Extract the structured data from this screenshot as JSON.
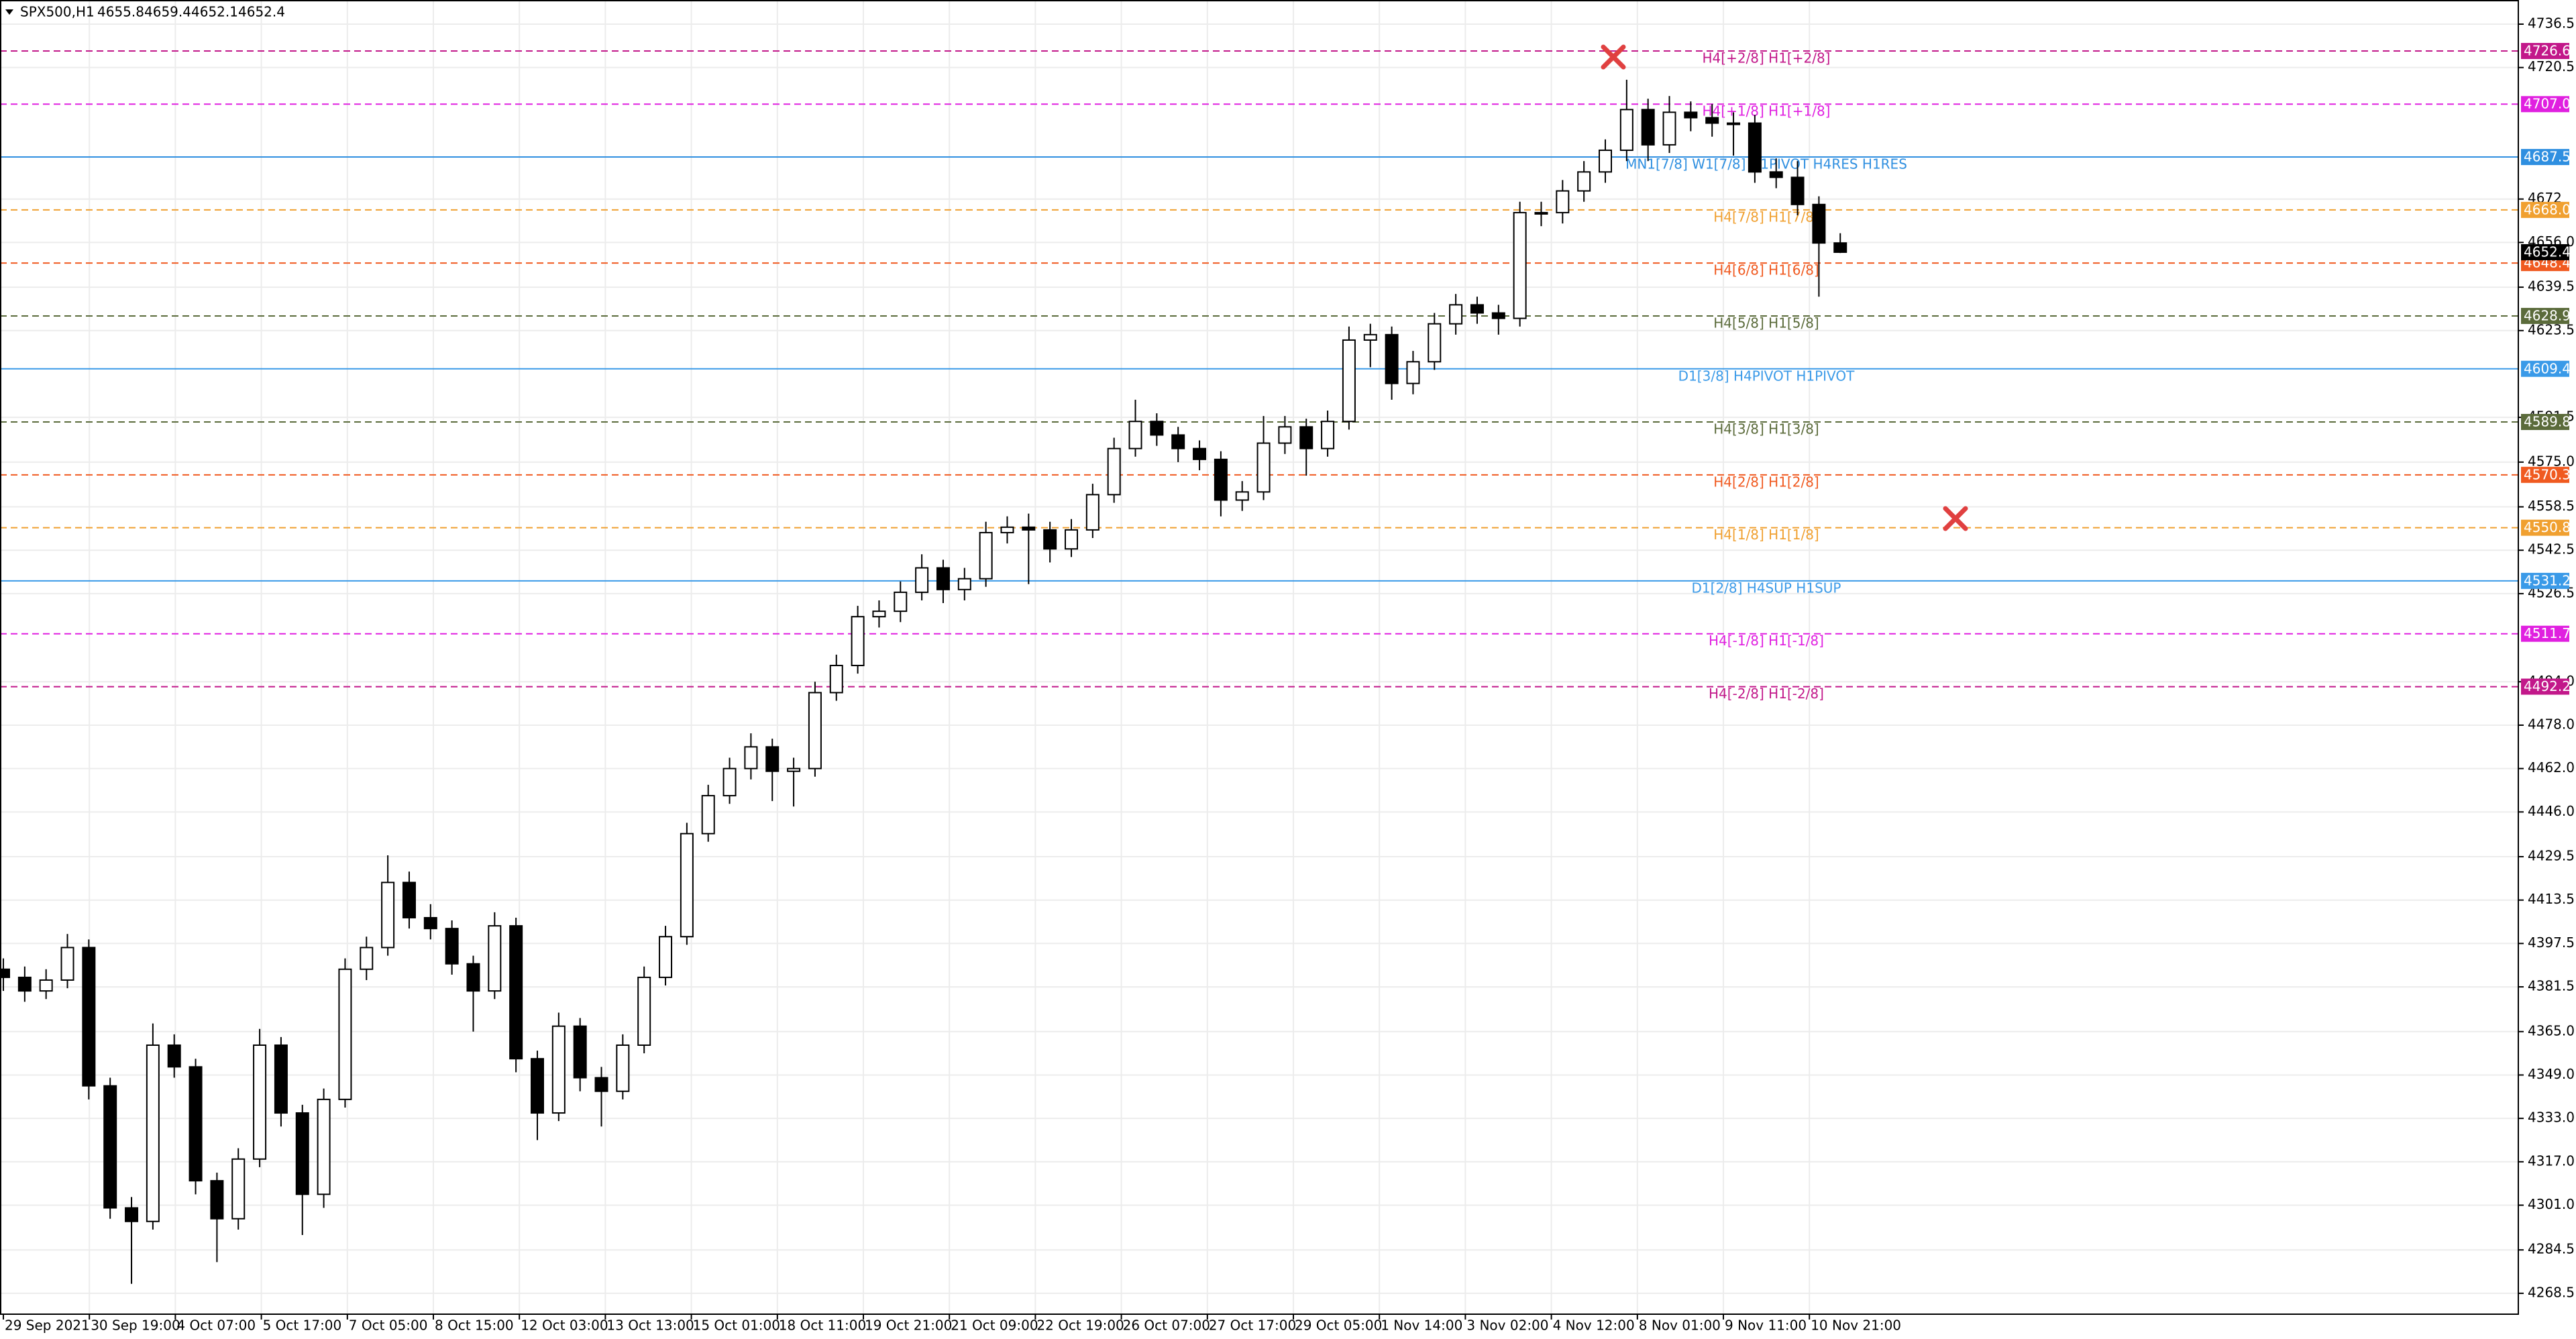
{
  "chart_data": {
    "type": "candlestick",
    "symbol": "SPX500,H1",
    "ylim": [
      4260.8,
      4745.4
    ],
    "yticks": [
      4736.5,
      4720.5,
      4672,
      {
        "value": 4656,
        "label": "4656.0"
      },
      4639.5,
      4623.5,
      4591.5,
      {
        "value": 4575,
        "label": "4575.0"
      },
      4558.5,
      4542.5,
      4526.5,
      {
        "value": 4494,
        "label": "4494.0"
      },
      {
        "value": 4478,
        "label": "4478.0"
      },
      {
        "value": 4462,
        "label": "4462.0"
      },
      {
        "value": 4446,
        "label": "4446.0"
      },
      4429.5,
      4413.5,
      4397.5,
      4381.5,
      {
        "value": 4365,
        "label": "4365.0"
      },
      {
        "value": 4349,
        "label": "4349.0"
      },
      {
        "value": 4333,
        "label": "4333.0"
      },
      {
        "value": 4317,
        "label": "4317.0"
      },
      {
        "value": 4301,
        "label": "4301.0"
      },
      4284.5,
      4268.5
    ],
    "xlabels": [
      "29 Sep 2021",
      "30 Sep 19:00",
      "4 Oct 07:00",
      "5 Oct 17:00",
      "7 Oct 05:00",
      "8 Oct 15:00",
      "12 Oct 03:00",
      "13 Oct 13:00",
      "15 Oct 01:00",
      "18 Oct 11:00",
      "19 Oct 21:00",
      "21 Oct 09:00",
      "22 Oct 19:00",
      "26 Oct 07:00",
      "27 Oct 17:00",
      "29 Oct 05:00",
      "1 Nov 14:00",
      "3 Nov 02:00",
      "4 Nov 12:00",
      "8 Nov 01:00",
      "9 Nov 11:00",
      "10 Nov 21:00"
    ],
    "grid": true,
    "up_color": "#ffffff",
    "down_color": "#000000",
    "wick_color": "#000000",
    "ohlc": [
      [
        4388,
        4392,
        4380,
        4385
      ],
      [
        4385,
        4389,
        4376,
        4380
      ],
      [
        4380,
        4388,
        4377,
        4384
      ],
      [
        4384,
        4401,
        4381,
        4396
      ],
      [
        4396,
        4399,
        4340,
        4345
      ],
      [
        4345,
        4348,
        4296,
        4300
      ],
      [
        4300,
        4304,
        4272,
        4295
      ],
      [
        4295,
        4368,
        4292,
        4360
      ],
      [
        4360,
        4364,
        4348,
        4352
      ],
      [
        4352,
        4355,
        4305,
        4310
      ],
      [
        4310,
        4313,
        4280,
        4296
      ],
      [
        4296,
        4322,
        4292,
        4318
      ],
      [
        4318,
        4366,
        4315,
        4360
      ],
      [
        4360,
        4363,
        4330,
        4335
      ],
      [
        4335,
        4338,
        4290,
        4305
      ],
      [
        4305,
        4344,
        4300,
        4340
      ],
      [
        4340,
        4392,
        4337,
        4388
      ],
      [
        4388,
        4400,
        4384,
        4396
      ],
      [
        4396,
        4430,
        4393,
        4420
      ],
      [
        4420,
        4424,
        4403,
        4407
      ],
      [
        4407,
        4412,
        4399,
        4403
      ],
      [
        4403,
        4406,
        4386,
        4390
      ],
      [
        4390,
        4393,
        4365,
        4380
      ],
      [
        4380,
        4409,
        4377,
        4404
      ],
      [
        4404,
        4407,
        4350,
        4355
      ],
      [
        4355,
        4358,
        4325,
        4335
      ],
      [
        4335,
        4372,
        4332,
        4367
      ],
      [
        4367,
        4370,
        4343,
        4348
      ],
      [
        4348,
        4352,
        4330,
        4343
      ],
      [
        4343,
        4364,
        4340,
        4360
      ],
      [
        4360,
        4389,
        4357,
        4385
      ],
      [
        4385,
        4404,
        4382,
        4400
      ],
      [
        4400,
        4442,
        4397,
        4438
      ],
      [
        4438,
        4456,
        4435,
        4452
      ],
      [
        4452,
        4466,
        4449,
        4462
      ],
      [
        4462,
        4475,
        4458,
        4470
      ],
      [
        4470,
        4473,
        4450,
        4461
      ],
      [
        4461,
        4466,
        4448,
        4462
      ],
      [
        4462,
        4494,
        4459,
        4490
      ],
      [
        4490,
        4504,
        4487,
        4500
      ],
      [
        4500,
        4522,
        4497,
        4518
      ],
      [
        4518,
        4524,
        4514,
        4520
      ],
      [
        4520,
        4531,
        4516,
        4527
      ],
      [
        4527,
        4541,
        4524,
        4536
      ],
      [
        4536,
        4539,
        4523,
        4528
      ],
      [
        4528,
        4536,
        4524,
        4532
      ],
      [
        4532,
        4553,
        4529,
        4549
      ],
      [
        4549,
        4555,
        4545,
        4551
      ],
      [
        4551,
        4556,
        4530,
        4550
      ],
      [
        4550,
        4553,
        4538,
        4543
      ],
      [
        4543,
        4554,
        4540,
        4550
      ],
      [
        4550,
        4567,
        4547,
        4563
      ],
      [
        4563,
        4584,
        4560,
        4580
      ],
      [
        4580,
        4598,
        4577,
        4590
      ],
      [
        4590,
        4593,
        4581,
        4585
      ],
      [
        4585,
        4588,
        4575,
        4580
      ],
      [
        4580,
        4583,
        4572,
        4576
      ],
      [
        4576,
        4579,
        4555,
        4561
      ],
      [
        4561,
        4568,
        4557,
        4564
      ],
      [
        4564,
        4592,
        4561,
        4582
      ],
      [
        4582,
        4592,
        4578,
        4588
      ],
      [
        4588,
        4591,
        4570,
        4580
      ],
      [
        4580,
        4594,
        4577,
        4590
      ],
      [
        4590,
        4625,
        4587,
        4620
      ],
      [
        4620,
        4626,
        4610,
        4622
      ],
      [
        4622,
        4625,
        4598,
        4604
      ],
      [
        4604,
        4616,
        4600,
        4612
      ],
      [
        4612,
        4630,
        4609,
        4626
      ],
      [
        4626,
        4637,
        4622,
        4633
      ],
      [
        4633,
        4636,
        4626,
        4630
      ],
      [
        4630,
        4633,
        4622,
        4628
      ],
      [
        4628,
        4671,
        4625,
        4667
      ],
      [
        4667,
        4671,
        4662,
        4667
      ],
      [
        4667,
        4679,
        4663,
        4675
      ],
      [
        4675,
        4686,
        4671,
        4682
      ],
      [
        4682,
        4694,
        4678,
        4690
      ],
      [
        4690,
        4716,
        4686,
        4705
      ],
      [
        4705,
        4709,
        4686,
        4692
      ],
      [
        4692,
        4710,
        4689,
        4704
      ],
      [
        4704,
        4708,
        4697,
        4702
      ],
      [
        4702,
        4707,
        4695,
        4700
      ],
      [
        4700,
        4704,
        4688,
        4700
      ],
      [
        4700,
        4703,
        4678,
        4682
      ],
      [
        4682,
        4687,
        4676,
        4680
      ],
      [
        4680,
        4686,
        4666,
        4670
      ],
      [
        4670,
        4673,
        4636,
        4655.8
      ],
      [
        4655.8,
        4659.4,
        4652.1,
        4652.4
      ]
    ],
    "levels": [
      {
        "value": 4726.6,
        "badge": "4726.6",
        "label": "H4[+2/8] H1[+2/8]",
        "color": "#c2188a",
        "dashed": true
      },
      {
        "value": 4707.0,
        "badge": "4707.0",
        "label": "H4[+1/8] H1[+1/8]",
        "color": "#e020e0",
        "dashed": true
      },
      {
        "value": 4687.5,
        "badge": "4687.5",
        "label": "MN1[7/8] W1[7/8] D1PIVOT H4RES H1RES",
        "color": "#2f8fe0",
        "dashed": false
      },
      {
        "value": 4668.0,
        "badge": "4668.0",
        "label": "H4[7/8] H1[7/8]",
        "color": "#f0a030",
        "dashed": true
      },
      {
        "value": 4648.4,
        "badge": "4648.4",
        "label": "H4[6/8] H1[6/8]",
        "color": "#f05a20",
        "dashed": true
      },
      {
        "value": 4628.9,
        "badge": "4628.9",
        "label": "H4[5/8] H1[5/8]",
        "color": "#5b6b3b",
        "dashed": true
      },
      {
        "value": 4609.4,
        "badge": "4609.4",
        "label": "D1[3/8] H4PIVOT H1PIVOT",
        "color": "#3a9ae8",
        "dashed": false
      },
      {
        "value": 4589.8,
        "badge": "4589.8",
        "label": "H4[3/8] H1[3/8]",
        "color": "#5b6b3b",
        "dashed": true
      },
      {
        "value": 4570.3,
        "badge": "4570.3",
        "label": "H4[2/8] H1[2/8]",
        "color": "#f05a20",
        "dashed": true
      },
      {
        "value": 4550.8,
        "badge": "4550.8",
        "label": "H4[1/8] H1[1/8]",
        "color": "#f0a030",
        "dashed": true
      },
      {
        "value": 4531.2,
        "badge": "4531.2",
        "label": "D1[2/8] H4SUP H1SUP",
        "color": "#3a9ae8",
        "dashed": false
      },
      {
        "value": 4511.7,
        "badge": "4511.7",
        "label": "H4[-1/8] H1[-1/8]",
        "color": "#e020e0",
        "dashed": true
      },
      {
        "value": 4492.2,
        "badge": "4492.2",
        "label": "H4[-2/8] H1[-2/8]",
        "color": "#c2188a",
        "dashed": true
      }
    ]
  }
}
